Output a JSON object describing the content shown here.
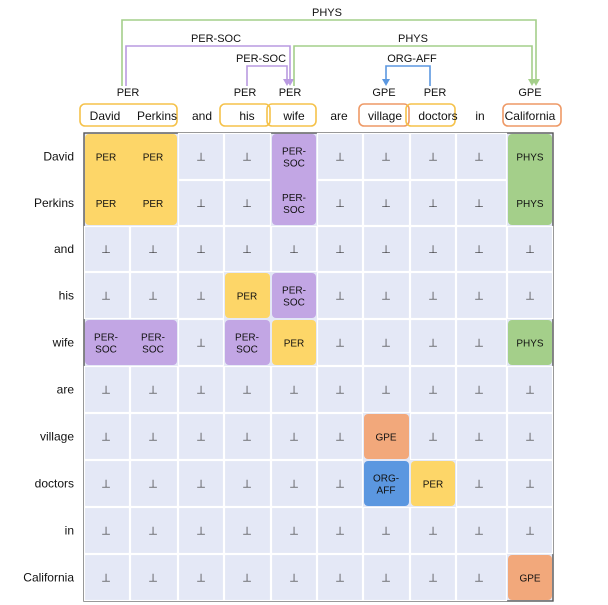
{
  "words": [
    "David",
    "Perkins",
    "and",
    "his",
    "wife",
    "are",
    "village",
    "doctors",
    "in",
    "California"
  ],
  "entity_spans": [
    {
      "start": 0,
      "end": 1,
      "label": "PER",
      "type": "PER"
    },
    {
      "start": 3,
      "end": 3,
      "label": "PER",
      "type": "PER"
    },
    {
      "start": 4,
      "end": 4,
      "label": "PER",
      "type": "PER"
    },
    {
      "start": 6,
      "end": 6,
      "label": "GPE",
      "type": "GPE"
    },
    {
      "start": 7,
      "end": 7,
      "label": "PER",
      "type": "PER"
    },
    {
      "start": 9,
      "end": 9,
      "label": "GPE",
      "type": "GPE"
    }
  ],
  "relations": [
    {
      "label": "PHYS",
      "from": 0,
      "to": 9,
      "color": "#a4cf8a"
    },
    {
      "label": "PER-SOC",
      "from": 0,
      "to": 4,
      "color": "#b99ae0"
    },
    {
      "label": "PHYS",
      "from": 4,
      "to": 9,
      "color": "#a4cf8a"
    },
    {
      "label": "PER-SOC",
      "from": 3,
      "to": 4,
      "color": "#b99ae0"
    },
    {
      "label": "ORG-AFF",
      "from": 7,
      "to": 6,
      "color": "#5b97e0"
    }
  ],
  "empty_symbol": "⊥",
  "colors": {
    "PER": "#fdd668",
    "PER_border": "#f5c24a",
    "PER-SOC": "#c2a6e4",
    "PHYS": "#a4cf8a",
    "GPE": "#f2a87b",
    "GPE_border": "#ee9966",
    "ORG-AFF": "#5b97e0",
    "empty": "#e4e8f6"
  },
  "matrix_blocks": [
    {
      "rows": [
        0,
        1
      ],
      "cols": [
        0,
        1
      ],
      "label": "PER",
      "type": "PER"
    },
    {
      "rows": [
        0,
        1
      ],
      "cols": [
        4,
        4
      ],
      "label": "PER-SOC",
      "type": "PER-SOC"
    },
    {
      "rows": [
        0,
        1
      ],
      "cols": [
        9,
        9
      ],
      "label": "PHYS",
      "type": "PHYS"
    },
    {
      "rows": [
        3,
        3
      ],
      "cols": [
        3,
        3
      ],
      "label": "PER",
      "type": "PER"
    },
    {
      "rows": [
        3,
        3
      ],
      "cols": [
        4,
        4
      ],
      "label": "PER-SOC",
      "type": "PER-SOC"
    },
    {
      "rows": [
        4,
        4
      ],
      "cols": [
        0,
        1
      ],
      "label": "PER-SOC",
      "type": "PER-SOC"
    },
    {
      "rows": [
        4,
        4
      ],
      "cols": [
        3,
        3
      ],
      "label": "PER-SOC",
      "type": "PER-SOC"
    },
    {
      "rows": [
        4,
        4
      ],
      "cols": [
        4,
        4
      ],
      "label": "PER",
      "type": "PER"
    },
    {
      "rows": [
        4,
        4
      ],
      "cols": [
        9,
        9
      ],
      "label": "PHYS",
      "type": "PHYS"
    },
    {
      "rows": [
        6,
        6
      ],
      "cols": [
        6,
        6
      ],
      "label": "GPE",
      "type": "GPE"
    },
    {
      "rows": [
        7,
        7
      ],
      "cols": [
        6,
        6
      ],
      "label": "ORG-AFF",
      "type": "ORG-AFF"
    },
    {
      "rows": [
        7,
        7
      ],
      "cols": [
        7,
        7
      ],
      "label": "PER",
      "type": "PER"
    },
    {
      "rows": [
        9,
        9
      ],
      "cols": [
        9,
        9
      ],
      "label": "GPE",
      "type": "GPE"
    }
  ]
}
